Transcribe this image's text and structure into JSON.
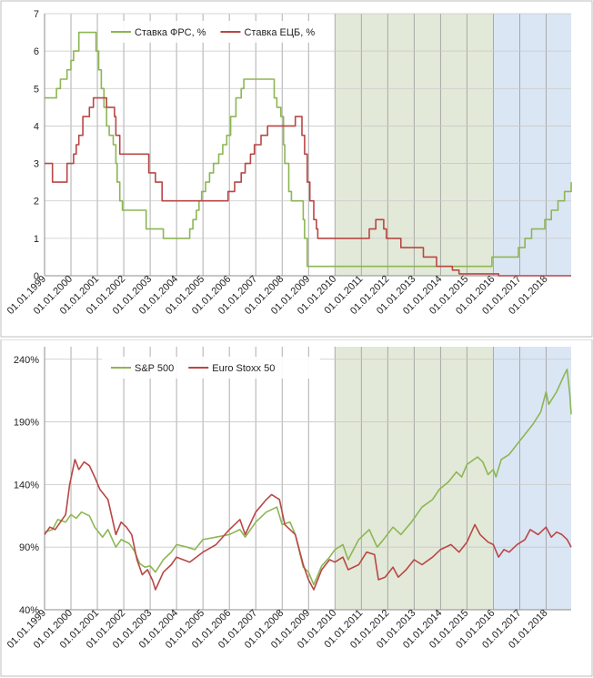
{
  "chart_data": [
    {
      "type": "line",
      "title": "",
      "ylim": [
        0,
        7
      ],
      "yticks": [
        "0",
        "1",
        "2",
        "3",
        "4",
        "5",
        "6",
        "7"
      ],
      "x_tick_labels": [
        "01.01.1999",
        "01.01.2000",
        "01.01.2001",
        "01.01.2002",
        "01.01.2003",
        "01.01.2004",
        "01.01.2005",
        "01.01.2006",
        "01.01.2007",
        "01.01.2008",
        "01.01.2009",
        "01.01.2010",
        "01.01.2011",
        "01.01.2012",
        "01.01.2013",
        "01.01.2014",
        "01.01.2015",
        "01.01.2016",
        "01.01.2017",
        "01.01.2018"
      ],
      "xlim": [
        1999.0,
        2018.95
      ],
      "shaded_regions": [
        {
          "from": 2010.0,
          "to": 2016.0,
          "color": "#e3e9d8"
        },
        {
          "from": 2016.0,
          "to": 2018.95,
          "color": "#dbe6f4"
        }
      ],
      "legend": "top-left",
      "series": [
        {
          "name": "Ставка ФРС, %",
          "color": "#8db653",
          "step": true,
          "points": [
            [
              1999.0,
              4.75
            ],
            [
              1999.45,
              5.0
            ],
            [
              1999.6,
              5.25
            ],
            [
              1999.85,
              5.5
            ],
            [
              2000.0,
              5.75
            ],
            [
              2000.1,
              6.0
            ],
            [
              2000.3,
              6.5
            ],
            [
              2000.95,
              6.0
            ],
            [
              2001.05,
              5.5
            ],
            [
              2001.15,
              5.0
            ],
            [
              2001.25,
              4.5
            ],
            [
              2001.35,
              4.0
            ],
            [
              2001.45,
              3.75
            ],
            [
              2001.6,
              3.5
            ],
            [
              2001.7,
              3.0
            ],
            [
              2001.75,
              2.5
            ],
            [
              2001.85,
              2.0
            ],
            [
              2001.95,
              1.75
            ],
            [
              2002.85,
              1.25
            ],
            [
              2003.5,
              1.0
            ],
            [
              2004.5,
              1.25
            ],
            [
              2004.62,
              1.5
            ],
            [
              2004.75,
              1.75
            ],
            [
              2004.85,
              2.0
            ],
            [
              2004.95,
              2.25
            ],
            [
              2005.1,
              2.5
            ],
            [
              2005.25,
              2.75
            ],
            [
              2005.4,
              3.0
            ],
            [
              2005.6,
              3.25
            ],
            [
              2005.75,
              3.5
            ],
            [
              2005.9,
              3.75
            ],
            [
              2006.05,
              4.25
            ],
            [
              2006.25,
              4.75
            ],
            [
              2006.45,
              5.0
            ],
            [
              2006.55,
              5.25
            ],
            [
              2007.7,
              4.75
            ],
            [
              2007.8,
              4.5
            ],
            [
              2007.95,
              4.25
            ],
            [
              2008.05,
              3.5
            ],
            [
              2008.1,
              3.0
            ],
            [
              2008.25,
              2.25
            ],
            [
              2008.35,
              2.0
            ],
            [
              2008.8,
              1.5
            ],
            [
              2008.85,
              1.0
            ],
            [
              2008.95,
              0.25
            ],
            [
              2015.95,
              0.5
            ],
            [
              2016.95,
              0.75
            ],
            [
              2017.2,
              1.0
            ],
            [
              2017.45,
              1.25
            ],
            [
              2017.95,
              1.5
            ],
            [
              2018.2,
              1.75
            ],
            [
              2018.45,
              2.0
            ],
            [
              2018.7,
              2.25
            ],
            [
              2018.95,
              2.5
            ]
          ]
        },
        {
          "name": "Ставка ЕЦБ, %",
          "color": "#b84745",
          "step": true,
          "points": [
            [
              1999.0,
              3.0
            ],
            [
              1999.3,
              2.5
            ],
            [
              1999.85,
              3.0
            ],
            [
              2000.1,
              3.25
            ],
            [
              2000.2,
              3.5
            ],
            [
              2000.3,
              3.75
            ],
            [
              2000.45,
              4.25
            ],
            [
              2000.7,
              4.5
            ],
            [
              2000.85,
              4.75
            ],
            [
              2001.35,
              4.5
            ],
            [
              2001.65,
              4.25
            ],
            [
              2001.7,
              3.75
            ],
            [
              2001.85,
              3.25
            ],
            [
              2002.95,
              2.75
            ],
            [
              2003.2,
              2.5
            ],
            [
              2003.45,
              2.0
            ],
            [
              2005.95,
              2.25
            ],
            [
              2006.2,
              2.5
            ],
            [
              2006.45,
              2.75
            ],
            [
              2006.6,
              3.0
            ],
            [
              2006.8,
              3.25
            ],
            [
              2006.95,
              3.5
            ],
            [
              2007.2,
              3.75
            ],
            [
              2007.45,
              4.0
            ],
            [
              2008.5,
              4.25
            ],
            [
              2008.75,
              3.75
            ],
            [
              2008.85,
              3.25
            ],
            [
              2008.95,
              2.5
            ],
            [
              2009.05,
              2.0
            ],
            [
              2009.2,
              1.5
            ],
            [
              2009.3,
              1.25
            ],
            [
              2009.35,
              1.0
            ],
            [
              2011.3,
              1.25
            ],
            [
              2011.55,
              1.5
            ],
            [
              2011.85,
              1.25
            ],
            [
              2011.95,
              1.0
            ],
            [
              2012.5,
              0.75
            ],
            [
              2013.35,
              0.5
            ],
            [
              2013.85,
              0.25
            ],
            [
              2014.45,
              0.15
            ],
            [
              2014.7,
              0.05
            ],
            [
              2016.2,
              0.0
            ]
          ]
        }
      ]
    },
    {
      "type": "line",
      "title": "",
      "ylim": [
        40,
        250
      ],
      "yticks": [
        "40%",
        "90%",
        "140%",
        "190%",
        "240%"
      ],
      "ytick_values": [
        40,
        90,
        140,
        190,
        240
      ],
      "x_tick_labels": [
        "01.01.1999",
        "01.01.2000",
        "01.01.2001",
        "01.01.2002",
        "01.01.2003",
        "01.01.2004",
        "01.01.2005",
        "01.01.2006",
        "01.01.2007",
        "01.01.2008",
        "01.01.2009",
        "01.01.2010",
        "01.01.2011",
        "01.01.2012",
        "01.01.2013",
        "01.01.2014",
        "01.01.2015",
        "01.01.2016",
        "01.01.2017",
        "01.01.2018"
      ],
      "xlim": [
        1999.0,
        2018.95
      ],
      "shaded_regions": [
        {
          "from": 2010.0,
          "to": 2016.0,
          "color": "#e3e9d8"
        },
        {
          "from": 2016.0,
          "to": 2018.95,
          "color": "#dbe6f4"
        }
      ],
      "legend": "top-left",
      "series": [
        {
          "name": "S&P 500",
          "color": "#8db653",
          "points": [
            [
              1999.0,
              102
            ],
            [
              1999.3,
              104
            ],
            [
              1999.5,
              112
            ],
            [
              1999.8,
              110
            ],
            [
              2000.0,
              116
            ],
            [
              2000.2,
              113
            ],
            [
              2000.4,
              118
            ],
            [
              2000.7,
              115
            ],
            [
              2000.9,
              106
            ],
            [
              2001.2,
              98
            ],
            [
              2001.4,
              104
            ],
            [
              2001.7,
              90
            ],
            [
              2001.9,
              96
            ],
            [
              2002.2,
              93
            ],
            [
              2002.4,
              87
            ],
            [
              2002.6,
              77
            ],
            [
              2002.8,
              74
            ],
            [
              2003.0,
              75
            ],
            [
              2003.2,
              70
            ],
            [
              2003.5,
              80
            ],
            [
              2003.8,
              86
            ],
            [
              2004.0,
              92
            ],
            [
              2004.4,
              90
            ],
            [
              2004.7,
              88
            ],
            [
              2005.0,
              96
            ],
            [
              2005.5,
              98
            ],
            [
              2006.0,
              100
            ],
            [
              2006.4,
              104
            ],
            [
              2006.6,
              98
            ],
            [
              2007.0,
              110
            ],
            [
              2007.4,
              118
            ],
            [
              2007.8,
              122
            ],
            [
              2008.0,
              108
            ],
            [
              2008.3,
              110
            ],
            [
              2008.5,
              100
            ],
            [
              2008.8,
              74
            ],
            [
              2009.0,
              70
            ],
            [
              2009.2,
              60
            ],
            [
              2009.5,
              75
            ],
            [
              2009.8,
              82
            ],
            [
              2010.0,
              88
            ],
            [
              2010.3,
              92
            ],
            [
              2010.5,
              80
            ],
            [
              2010.9,
              96
            ],
            [
              2011.3,
              104
            ],
            [
              2011.6,
              90
            ],
            [
              2011.8,
              95
            ],
            [
              2012.2,
              106
            ],
            [
              2012.5,
              100
            ],
            [
              2012.9,
              110
            ],
            [
              2013.3,
              122
            ],
            [
              2013.7,
              128
            ],
            [
              2013.95,
              136
            ],
            [
              2014.3,
              142
            ],
            [
              2014.6,
              150
            ],
            [
              2014.8,
              146
            ],
            [
              2015.0,
              156
            ],
            [
              2015.4,
              162
            ],
            [
              2015.6,
              158
            ],
            [
              2015.8,
              148
            ],
            [
              2016.0,
              152
            ],
            [
              2016.1,
              146
            ],
            [
              2016.3,
              160
            ],
            [
              2016.6,
              164
            ],
            [
              2016.9,
              172
            ],
            [
              2017.2,
              180
            ],
            [
              2017.5,
              188
            ],
            [
              2017.8,
              198
            ],
            [
              2018.0,
              214
            ],
            [
              2018.1,
              204
            ],
            [
              2018.4,
              214
            ],
            [
              2018.7,
              228
            ],
            [
              2018.8,
              232
            ],
            [
              2018.9,
              212
            ],
            [
              2018.95,
              196
            ]
          ]
        },
        {
          "name": "Euro Stoxx 50",
          "color": "#b84745",
          "points": [
            [
              1999.0,
              100
            ],
            [
              1999.2,
              106
            ],
            [
              1999.4,
              104
            ],
            [
              1999.6,
              110
            ],
            [
              1999.8,
              116
            ],
            [
              1999.95,
              140
            ],
            [
              2000.15,
              160
            ],
            [
              2000.3,
              152
            ],
            [
              2000.5,
              158
            ],
            [
              2000.7,
              155
            ],
            [
              2000.9,
              146
            ],
            [
              2001.1,
              136
            ],
            [
              2001.4,
              128
            ],
            [
              2001.7,
              100
            ],
            [
              2001.9,
              110
            ],
            [
              2002.1,
              106
            ],
            [
              2002.3,
              100
            ],
            [
              2002.5,
              80
            ],
            [
              2002.7,
              68
            ],
            [
              2002.9,
              72
            ],
            [
              2003.1,
              63
            ],
            [
              2003.2,
              56
            ],
            [
              2003.5,
              70
            ],
            [
              2003.8,
              76
            ],
            [
              2004.0,
              82
            ],
            [
              2004.5,
              78
            ],
            [
              2005.0,
              86
            ],
            [
              2005.5,
              92
            ],
            [
              2006.0,
              104
            ],
            [
              2006.4,
              112
            ],
            [
              2006.6,
              100
            ],
            [
              2007.0,
              118
            ],
            [
              2007.4,
              128
            ],
            [
              2007.6,
              132
            ],
            [
              2007.9,
              128
            ],
            [
              2008.1,
              108
            ],
            [
              2008.5,
              100
            ],
            [
              2008.8,
              76
            ],
            [
              2009.0,
              64
            ],
            [
              2009.2,
              56
            ],
            [
              2009.5,
              72
            ],
            [
              2009.8,
              80
            ],
            [
              2010.0,
              78
            ],
            [
              2010.3,
              82
            ],
            [
              2010.5,
              72
            ],
            [
              2010.9,
              76
            ],
            [
              2011.2,
              86
            ],
            [
              2011.5,
              84
            ],
            [
              2011.65,
              64
            ],
            [
              2011.9,
              66
            ],
            [
              2012.2,
              74
            ],
            [
              2012.4,
              66
            ],
            [
              2012.7,
              72
            ],
            [
              2013.0,
              80
            ],
            [
              2013.3,
              76
            ],
            [
              2013.7,
              82
            ],
            [
              2014.0,
              88
            ],
            [
              2014.4,
              92
            ],
            [
              2014.7,
              86
            ],
            [
              2015.0,
              94
            ],
            [
              2015.3,
              108
            ],
            [
              2015.5,
              100
            ],
            [
              2015.8,
              94
            ],
            [
              2016.0,
              92
            ],
            [
              2016.2,
              82
            ],
            [
              2016.4,
              88
            ],
            [
              2016.6,
              86
            ],
            [
              2016.9,
              92
            ],
            [
              2017.2,
              96
            ],
            [
              2017.4,
              104
            ],
            [
              2017.7,
              100
            ],
            [
              2018.0,
              106
            ],
            [
              2018.2,
              98
            ],
            [
              2018.4,
              102
            ],
            [
              2018.6,
              100
            ],
            [
              2018.8,
              96
            ],
            [
              2018.95,
              90
            ]
          ]
        }
      ]
    }
  ]
}
